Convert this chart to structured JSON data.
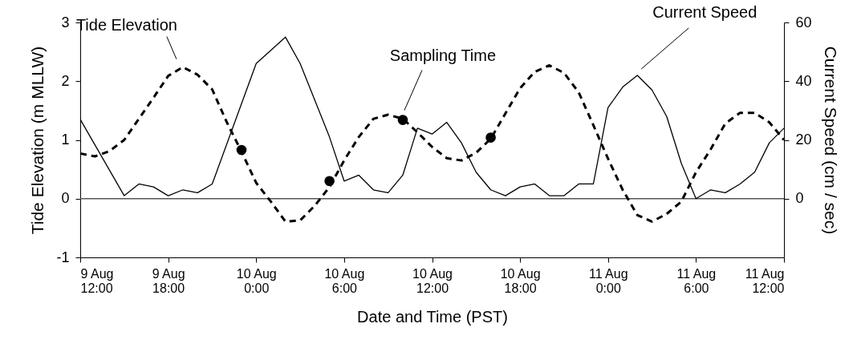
{
  "chart_data": {
    "type": "line",
    "xlabel": "Date and Time (PST)",
    "ylabel": "Tide Elevation (m MLLW)",
    "y2label": "Current Speed (cm / sec)",
    "x": [
      "--08-09T12:00",
      "--08-09T13:00",
      "--08-09T14:00",
      "--08-09T15:00",
      "--08-09T16:00",
      "--08-09T17:00",
      "--08-09T18:00",
      "--08-09T19:00",
      "--08-09T20:00",
      "--08-09T21:00",
      "--08-09T22:00",
      "--08-09T23:00",
      "--08-10T00:00",
      "--08-10T01:00",
      "--08-10T02:00",
      "--08-10T03:00",
      "--08-10T04:00",
      "--08-10T05:00",
      "--08-10T06:00",
      "--08-10T07:00",
      "--08-10T08:00",
      "--08-10T09:00",
      "--08-10T10:00",
      "--08-10T11:00",
      "--08-10T12:00",
      "--08-10T13:00",
      "--08-10T14:00",
      "--08-10T15:00",
      "--08-10T16:00",
      "--08-10T17:00",
      "--08-10T18:00",
      "--08-10T19:00",
      "--08-10T20:00",
      "--08-10T21:00",
      "--08-10T22:00",
      "--08-10T23:00",
      "--08-11T00:00",
      "--08-11T01:00",
      "--08-11T02:00",
      "--08-11T03:00",
      "--08-11T04:00",
      "--08-11T05:00",
      "--08-11T06:00",
      "--08-11T07:00",
      "--08-11T08:00",
      "--08-11T09:00",
      "--08-11T10:00",
      "--08-11T11:00",
      "--08-11T12:00"
    ],
    "series": [
      {
        "name": "Tide Elevation",
        "color": "#000000",
        "line_style": "dashed",
        "values": [
          0.77,
          0.72,
          0.81,
          1.0,
          1.36,
          1.72,
          2.09,
          2.24,
          2.11,
          1.86,
          1.3,
          0.8,
          0.27,
          -0.05,
          -0.39,
          -0.37,
          -0.12,
          0.2,
          0.65,
          1.05,
          1.36,
          1.43,
          1.36,
          1.13,
          0.88,
          0.69,
          0.65,
          0.78,
          1.02,
          1.45,
          1.88,
          2.16,
          2.27,
          2.14,
          1.81,
          1.25,
          0.68,
          0.15,
          -0.28,
          -0.39,
          -0.26,
          -0.05,
          0.45,
          0.84,
          1.28,
          1.46,
          1.46,
          1.3,
          1.0
        ]
      },
      {
        "name": "Current Speed",
        "axis": "y2",
        "color": "#000000",
        "line_style": "solid",
        "x": [
          "--08-09T12:00",
          "--08-09T15:00",
          "--08-09T16:00",
          "--08-09T17:00",
          "--08-09T18:00",
          "--08-09T19:00",
          "--08-09T20:00",
          "--08-09T21:00",
          "--08-10T00:00",
          "--08-10T02:00",
          "--08-10T03:00",
          "--08-10T05:00",
          "--08-10T06:00",
          "--08-10T07:00",
          "--08-10T08:00",
          "--08-10T09:00",
          "--08-10T10:00",
          "--08-10T11:00",
          "--08-10T12:00",
          "--08-10T13:00",
          "--08-10T14:00",
          "--08-10T15:00",
          "--08-10T16:00",
          "--08-10T17:00",
          "--08-10T18:00",
          "--08-10T19:00",
          "--08-10T20:00",
          "--08-10T21:00",
          "--08-10T22:00",
          "--08-10T23:00",
          "--08-11T00:00",
          "--08-11T01:00",
          "--08-11T02:00",
          "--08-11T03:00",
          "--08-11T04:00",
          "--08-11T05:00",
          "--08-11T06:00",
          "--08-11T07:00",
          "--08-11T08:00",
          "--08-11T09:00",
          "--08-11T10:00",
          "--08-11T11:00",
          "--08-11T12:00"
        ],
        "values": [
          27,
          1,
          5,
          4,
          1,
          3,
          2,
          5,
          46,
          55,
          46,
          21,
          6,
          8,
          3,
          2,
          8,
          24,
          22,
          26,
          19,
          9,
          3,
          1,
          4,
          5,
          1,
          1,
          5,
          5,
          31,
          38,
          42,
          37,
          28,
          12,
          0,
          3,
          2,
          5,
          9,
          19,
          24
        ]
      },
      {
        "name": "Sampling Time",
        "type": "scatter",
        "marker": "circle",
        "color": "#000000",
        "x": [
          "--08-09T23:00",
          "--08-10T05:00",
          "--08-10T10:00",
          "--08-10T16:00"
        ],
        "values": [
          0.83,
          0.3,
          1.34,
          1.04
        ]
      }
    ],
    "xlim": [
      "--08-09T12:00",
      "--08-11T12:00"
    ],
    "xticks": [
      {
        "value": "--08-09T12:00",
        "label": "9 Aug\n12:00"
      },
      {
        "value": "--08-09T18:00",
        "label": "9 Aug\n18:00"
      },
      {
        "value": "--08-10T00:00",
        "label": "10 Aug\n0:00"
      },
      {
        "value": "--08-10T06:00",
        "label": "10 Aug\n6:00"
      },
      {
        "value": "--08-10T12:00",
        "label": "10 Aug\n12:00"
      },
      {
        "value": "--08-10T18:00",
        "label": "10 Aug\n18:00"
      },
      {
        "value": "--08-11T00:00",
        "label": "11 Aug\n0:00"
      },
      {
        "value": "--08-11T06:00",
        "label": "11 Aug\n6:00"
      },
      {
        "value": "--08-11T12:00",
        "label": "11 Aug\n12:00"
      }
    ],
    "ylim": [
      -1,
      3
    ],
    "yticks": [
      -1,
      0,
      1,
      2,
      3
    ],
    "y2lim": [
      -20,
      60
    ],
    "y2ticks": [
      0,
      20,
      40,
      60
    ],
    "ref_lines": [
      {
        "axis": "y",
        "value": 0,
        "color": "#555555"
      }
    ],
    "grid": false
  }
}
